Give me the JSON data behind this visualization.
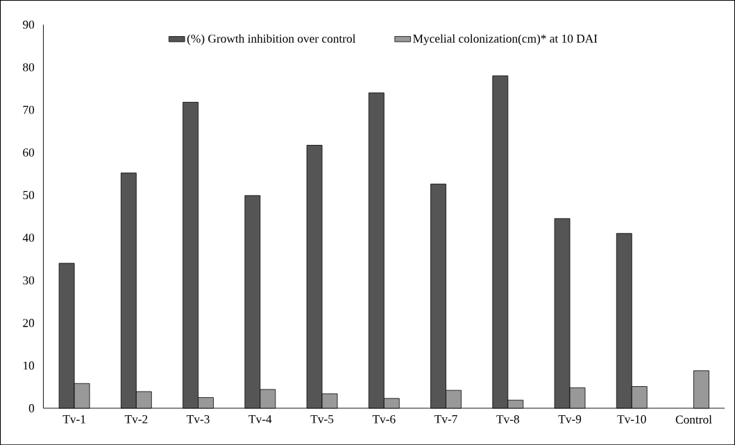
{
  "chart_data": {
    "type": "bar",
    "categories": [
      "Tv-1",
      "Tv-2",
      "Tv-3",
      "Tv-4",
      "Tv-5",
      "Tv-6",
      "Tv-7",
      "Tv-8",
      "Tv-9",
      "Tv-10",
      "Control"
    ],
    "series": [
      {
        "name": "(%) Growth inhibition over control",
        "color": "#555555",
        "values": [
          34,
          55.2,
          71.8,
          49.9,
          61.7,
          74,
          52.6,
          78,
          44.5,
          41,
          null
        ]
      },
      {
        "name": "Mycelial colonization(cm)* at 10 DAI",
        "color": "#999999",
        "values": [
          5.8,
          3.9,
          2.5,
          4.4,
          3.4,
          2.3,
          4.2,
          1.9,
          4.8,
          5.1,
          8.8
        ]
      }
    ],
    "ylim": [
      0,
      90
    ],
    "yticks": [
      0,
      10,
      20,
      30,
      40,
      50,
      60,
      70,
      80,
      90
    ],
    "grid": false,
    "legend": "top"
  }
}
